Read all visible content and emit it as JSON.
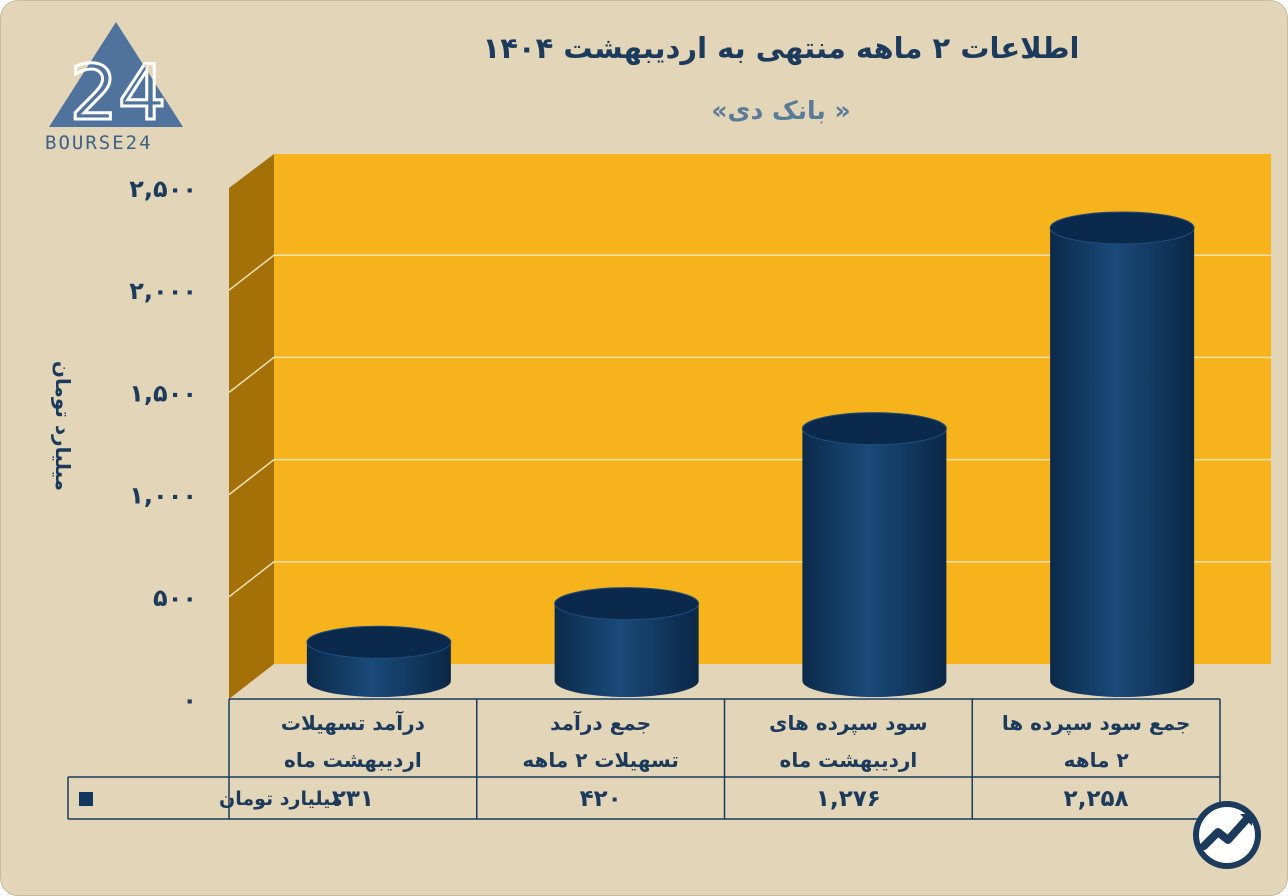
{
  "header": {
    "title": "اطلاعات ۲ ماهه منتهی به اردیبهشت ۱۴۰۴",
    "subtitle": "« بانک دی»"
  },
  "logo": {
    "text": "BOURSE24",
    "numeral": "24"
  },
  "colors": {
    "background": "#e3d5b8",
    "plot_back": "#f7b31b",
    "plot_side": "#a37108",
    "bar": "#12375f",
    "text": "#1b3a5c"
  },
  "chart_data": {
    "type": "bar",
    "ylabel": "میلیارد تومان",
    "ylim": [
      0,
      2500
    ],
    "yticks": [
      0,
      500,
      1000,
      1500,
      2000,
      2500
    ],
    "ytick_labels": [
      "۰",
      "۵۰۰",
      "۱,۰۰۰",
      "۱,۵۰۰",
      "۲,۰۰۰",
      "۲,۵۰۰"
    ],
    "categories": [
      [
        "درآمد تسهیلات",
        "اردیبهشت ماه"
      ],
      [
        "جمع درآمد",
        "تسهیلات ۲ ماهه"
      ],
      [
        "سود سپرده های",
        "اردیبهشت ماه"
      ],
      [
        "جمع سود سپرده ها",
        "۲ ماهه"
      ]
    ],
    "series": [
      {
        "name": "میلیارد تومان",
        "values": [
          231,
          420,
          1276,
          2258
        ],
        "value_labels": [
          "۲۳۱",
          "۴۲۰",
          "۱,۲۷۶",
          "۲,۲۵۸"
        ]
      }
    ],
    "grid": true,
    "legend": "data-table"
  },
  "badge_icon": "trend-arrow-icon"
}
